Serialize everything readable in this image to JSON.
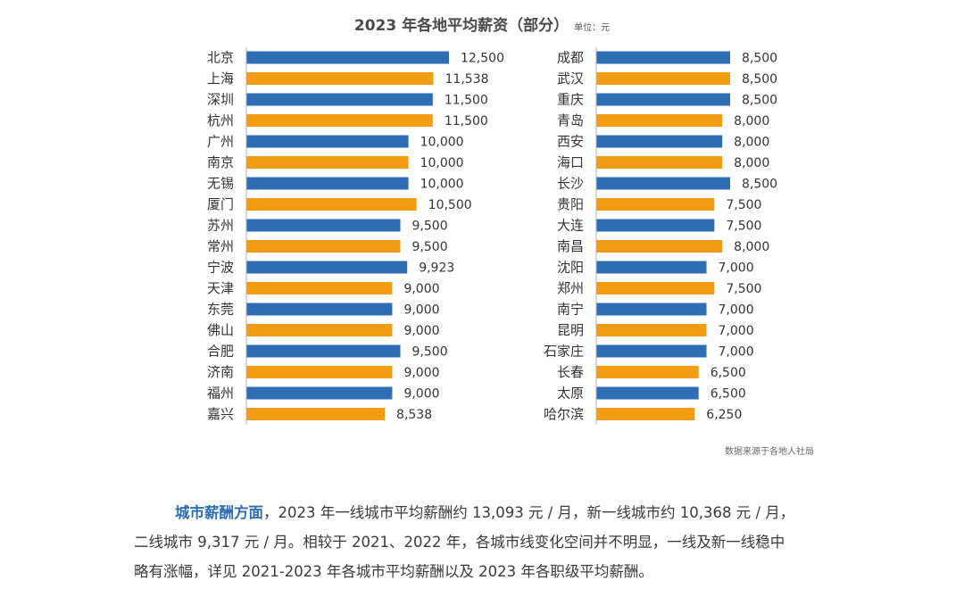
{
  "chart_data": {
    "type": "bar",
    "orientation": "horizontal",
    "title": "2023 年各地平均薪资（部分）",
    "unit_label": "单位：元",
    "colors": {
      "blue": "#2e6db3",
      "orange": "#f39c12"
    },
    "panels": [
      {
        "name": "left",
        "xlim": [
          0,
          12500
        ],
        "categories": [
          "北京",
          "上海",
          "深圳",
          "杭州",
          "广州",
          "南京",
          "无锡",
          "厦门",
          "苏州",
          "常州",
          "宁波",
          "天津",
          "东莞",
          "佛山",
          "合肥",
          "济南",
          "福州",
          "嘉兴"
        ],
        "values": [
          12500,
          11538,
          11500,
          11500,
          10000,
          10000,
          10000,
          10500,
          9500,
          9500,
          9923,
          9000,
          9000,
          9000,
          9500,
          9000,
          9000,
          8538
        ],
        "value_labels": [
          "12,500",
          "11,538",
          "11,500",
          "11,500",
          "10,000",
          "10,000",
          "10,000",
          "10,500",
          "9,500",
          "9,500",
          "9,923",
          "9,000",
          "9,000",
          "9,000",
          "9,500",
          "9,000",
          "9,000",
          "8,538"
        ]
      },
      {
        "name": "right",
        "xlim": [
          0,
          8500
        ],
        "categories": [
          "成都",
          "武汉",
          "重庆",
          "青岛",
          "西安",
          "海口",
          "长沙",
          "贵阳",
          "大连",
          "南昌",
          "沈阳",
          "郑州",
          "南宁",
          "昆明",
          "石家庄",
          "长春",
          "太原",
          "哈尔滨"
        ],
        "values": [
          8500,
          8500,
          8500,
          8000,
          8000,
          8000,
          8500,
          7500,
          7500,
          8000,
          7000,
          7500,
          7000,
          7000,
          7000,
          6500,
          6500,
          6250
        ],
        "value_labels": [
          "8,500",
          "8,500",
          "8,500",
          "8,000",
          "8,000",
          "8,000",
          "8,500",
          "7,500",
          "7,500",
          "8,000",
          "7,000",
          "7,500",
          "7,000",
          "7,000",
          "7,000",
          "6,500",
          "6,500",
          "6,250"
        ]
      }
    ],
    "source": "数据来源于各地人社局"
  },
  "text": {
    "heading": "城市薪酬方面",
    "line1": "，2023 年一线城市平均薪酬约 13,093 元 / 月，新一线城市约 10,368 元 / 月，",
    "line2": "二线城市 9,317 元 / 月。相较于 2021、2022 年，各城市线变化空间并不明显，一线及新一线稳中",
    "line3": "略有涨幅，详见 2021-2023 年各城市平均薪酬以及 2023 年各职级平均薪酬。"
  }
}
